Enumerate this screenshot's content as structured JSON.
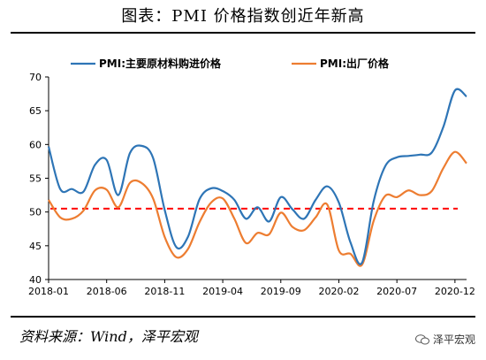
{
  "header": {
    "title": "图表：PMI 价格指数创近年新高"
  },
  "footer": {
    "source": "资料来源：Wind，泽平宏观",
    "brand": "泽平宏观",
    "brand_icon": "wechat-icon"
  },
  "colors": {
    "series1": "#2E75B6",
    "series2": "#ED7D31",
    "reference": "#FF0000"
  },
  "chart_data": {
    "type": "line",
    "title": "",
    "xlabel": "",
    "ylabel": "",
    "ylim": [
      40,
      70
    ],
    "yticks": [
      40,
      45,
      50,
      55,
      60,
      65,
      70
    ],
    "xtick_labels": [
      "2018-01",
      "2018-06",
      "2018-11",
      "2019-04",
      "2019-09",
      "2020-02",
      "2020-07",
      "2020-12"
    ],
    "x": [
      "2018-01",
      "2018-02",
      "2018-03",
      "2018-04",
      "2018-05",
      "2018-06",
      "2018-07",
      "2018-08",
      "2018-09",
      "2018-10",
      "2018-11",
      "2018-12",
      "2019-01",
      "2019-02",
      "2019-03",
      "2019-04",
      "2019-05",
      "2019-06",
      "2019-07",
      "2019-08",
      "2019-09",
      "2019-10",
      "2019-11",
      "2019-12",
      "2020-01",
      "2020-02",
      "2020-03",
      "2020-04",
      "2020-05",
      "2020-06",
      "2020-07",
      "2020-08",
      "2020-09",
      "2020-10",
      "2020-11",
      "2020-12",
      "2021-01"
    ],
    "series": [
      {
        "name": "PMI:主要原材料购进价格",
        "values": [
          59.7,
          53.4,
          53.4,
          53.0,
          57.0,
          57.7,
          52.5,
          58.7,
          59.8,
          58.0,
          50.3,
          44.8,
          46.3,
          51.9,
          53.5,
          53.1,
          51.8,
          49.0,
          50.7,
          48.6,
          52.2,
          50.4,
          49.0,
          51.8,
          53.8,
          51.4,
          45.5,
          42.5,
          51.6,
          56.8,
          58.1,
          58.3,
          58.5,
          58.8,
          62.6,
          68.0,
          67.1
        ]
      },
      {
        "name": "PMI:出厂价格",
        "values": [
          51.8,
          49.2,
          49.0,
          50.2,
          53.2,
          53.3,
          50.7,
          54.3,
          54.3,
          52.0,
          46.3,
          43.3,
          44.5,
          48.5,
          51.4,
          52.0,
          49.0,
          45.4,
          46.9,
          46.7,
          49.9,
          47.8,
          47.3,
          49.2,
          51.1,
          44.3,
          43.8,
          42.2,
          48.7,
          52.4,
          52.2,
          53.2,
          52.5,
          53.1,
          56.5,
          58.9,
          57.2
        ]
      }
    ],
    "reference_line": {
      "value": 50.5,
      "style": "dashed"
    },
    "legend_position": "top",
    "grid": false
  }
}
